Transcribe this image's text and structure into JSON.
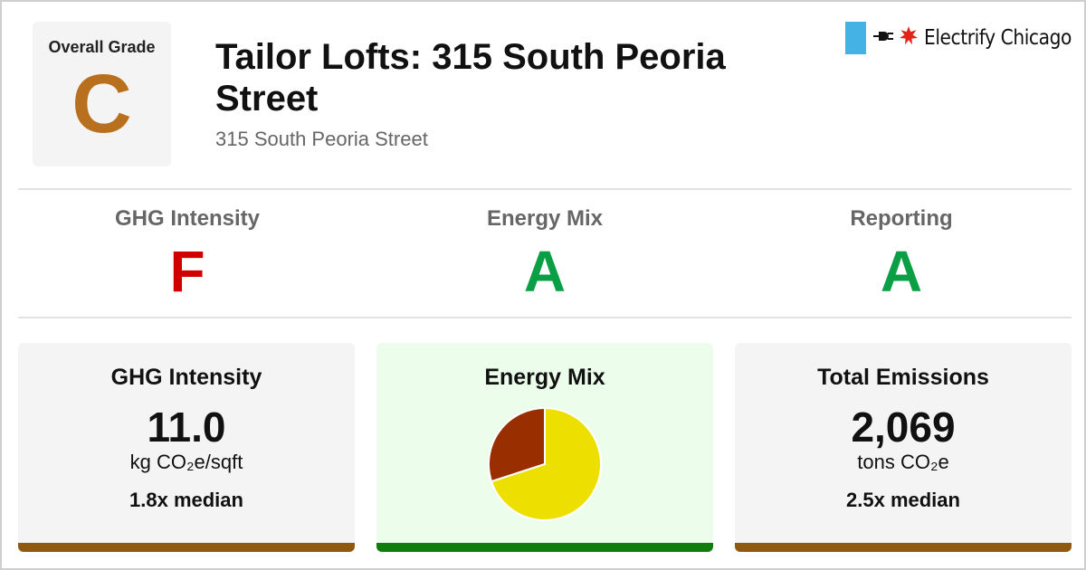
{
  "header": {
    "overall_grade_label": "Overall Grade",
    "overall_grade": "C",
    "title": "Tailor Lofts: 315 South Peoria Street",
    "address": "315 South Peoria Street",
    "brand_name": "Electrify Chicago",
    "brand_icons": [
      "chicago-flag-icon",
      "plug-icon",
      "chicago-star-icon"
    ]
  },
  "grades": [
    {
      "label": "GHG Intensity",
      "letter": "F",
      "color": "#d10000"
    },
    {
      "label": "Energy Mix",
      "letter": "A",
      "color": "#0a9e45"
    },
    {
      "label": "Reporting",
      "letter": "A",
      "color": "#0a9e45"
    }
  ],
  "cards": {
    "ghg": {
      "title": "GHG Intensity",
      "value": "11.0",
      "unit": "kg CO₂e/sqft",
      "median": "1.8x median",
      "bar_color": "#8f5a10"
    },
    "mix": {
      "title": "Energy Mix",
      "bar_color": "#0e7d0e"
    },
    "emissions": {
      "title": "Total Emissions",
      "value": "2,069",
      "unit": "tons CO₂e",
      "median": "2.5x median",
      "bar_color": "#8f5a10"
    }
  },
  "chart_data": {
    "type": "pie",
    "values": [
      30,
      70
    ],
    "colors": [
      "#992e00",
      "#ede000"
    ],
    "title": "",
    "legend": "none"
  },
  "colors": {
    "grade_c": "#b8701e",
    "flag_blue": "#45b2e6",
    "star_red": "#e2231a"
  }
}
